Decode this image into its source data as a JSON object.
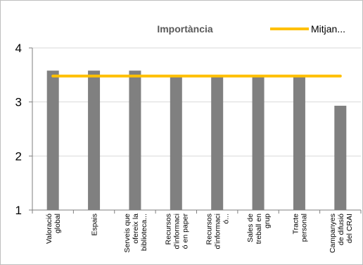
{
  "chart_data": {
    "type": "bar",
    "title": "Importància",
    "categories": [
      [
        "Valoració",
        "global"
      ],
      [
        "Espais"
      ],
      [
        "Serveis que",
        "ofereix la",
        "biblioteca..."
      ],
      [
        "Recursos",
        "d'informaci",
        "ó en paper"
      ],
      [
        "Recursos",
        "d'informaci",
        "ó..."
      ],
      [
        "Sales de",
        "treball en",
        "grup"
      ],
      [
        "Tracte",
        "personal"
      ],
      [
        "Campanyes",
        "de difusió",
        "del CRAI"
      ]
    ],
    "series": [
      {
        "type": "bar",
        "values": [
          3.58,
          3.58,
          3.58,
          3.48,
          3.48,
          3.48,
          3.48,
          2.93
        ],
        "color": "#808080"
      },
      {
        "type": "line",
        "name": "Mitjan...",
        "values": [
          3.48,
          3.48,
          3.48,
          3.48,
          3.48,
          3.48,
          3.48,
          3.48
        ],
        "color": "#ffc000"
      }
    ],
    "yticks": [
      "1",
      "2",
      "3",
      "4"
    ],
    "ylim": [
      1,
      4
    ],
    "grid": true,
    "legend_position": "top-right"
  }
}
